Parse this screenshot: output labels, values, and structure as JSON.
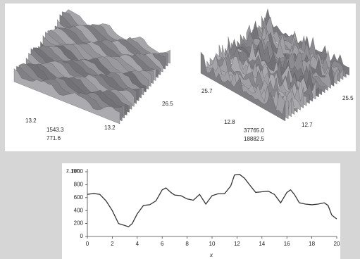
{
  "surface_plots": [
    {
      "labels": [
        "13.2",
        "1543.3",
        "771.6",
        "13.2",
        "26.5"
      ]
    },
    {
      "labels": [
        "25.7",
        "12.8",
        "37765.0",
        "18882.5",
        "12.7",
        "25.5"
      ]
    }
  ],
  "chart_data": {
    "type": "line",
    "ylabel": "z, nm",
    "xlabel": "x",
    "xlim": [
      0,
      20
    ],
    "xticks": [
      0,
      2,
      4,
      6,
      8,
      10,
      12,
      14,
      16,
      18,
      20
    ],
    "ylim": [
      0,
      1000
    ],
    "yticks": [
      0,
      200,
      400,
      600,
      800,
      1000
    ],
    "series": [
      {
        "color": "#333333",
        "x": [
          0,
          0.5,
          1,
          1.5,
          2,
          2.5,
          3,
          3.3,
          3.6,
          4,
          4.5,
          5,
          5.5,
          6,
          6.3,
          6.7,
          7,
          7.5,
          8,
          8.5,
          9,
          9.5,
          10,
          10.5,
          11,
          11.5,
          11.8,
          12.2,
          12.6,
          13,
          13.5,
          14,
          14.5,
          15,
          15.5,
          16,
          16.3,
          16.6,
          17,
          17.5,
          18,
          18.5,
          19,
          19.3,
          19.6,
          20
        ],
        "values": [
          650,
          665,
          650,
          550,
          400,
          200,
          170,
          150,
          200,
          350,
          480,
          490,
          550,
          720,
          750,
          680,
          640,
          630,
          580,
          560,
          650,
          500,
          630,
          660,
          660,
          780,
          950,
          960,
          900,
          800,
          680,
          690,
          700,
          650,
          520,
          680,
          720,
          650,
          520,
          500,
          490,
          500,
          520,
          480,
          330,
          270
        ]
      }
    ]
  }
}
